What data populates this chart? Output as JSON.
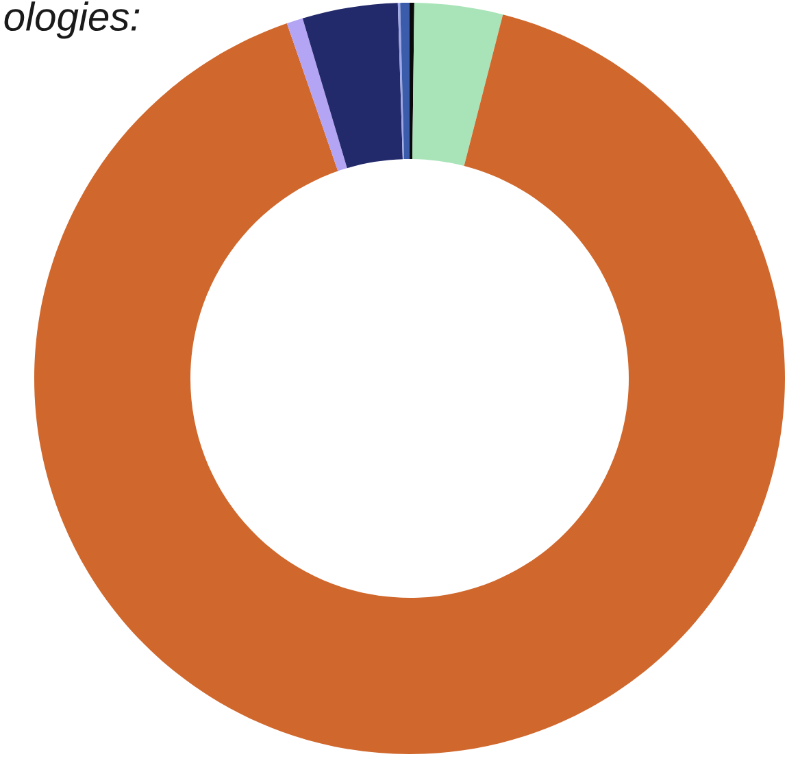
{
  "chart_data": {
    "type": "donut",
    "title": "ologies:",
    "categories": [
      null,
      null,
      null,
      null,
      null,
      null,
      null
    ],
    "values": [
      0.2,
      3.8,
      90.7,
      0.7,
      4.1,
      0.1,
      0.4
    ],
    "colors": [
      "#0a0a0a",
      "#a8e4b8",
      "#d0672c",
      "#b4a4f4",
      "#232a6b",
      "#9fa8e8",
      "#3b5bab"
    ]
  }
}
